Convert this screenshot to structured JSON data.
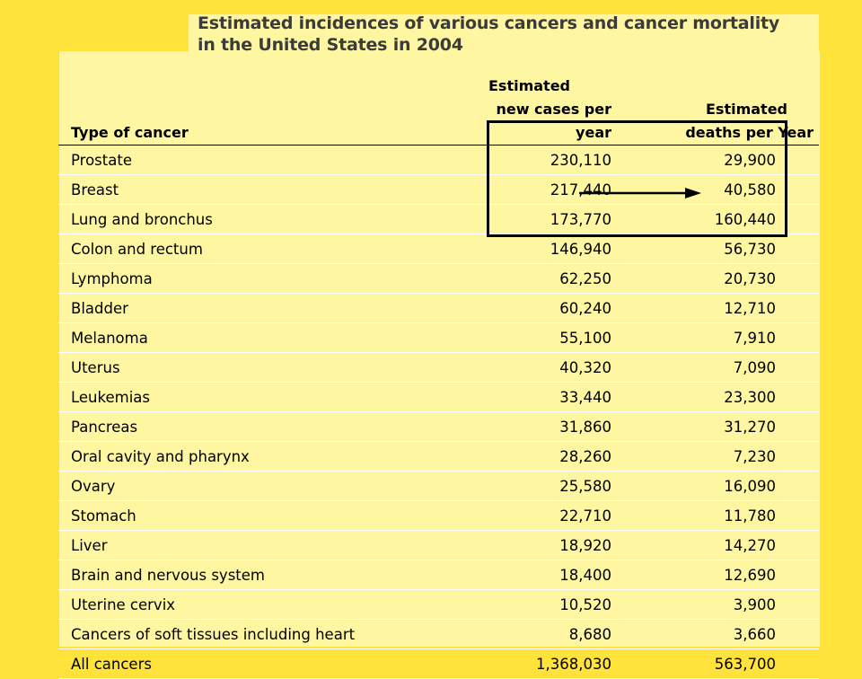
{
  "title": {
    "line1": "Estimated incidences of various cancers and cancer mortality",
    "line2": "in the United States in 2004"
  },
  "table": {
    "headers": {
      "type": "Type of cancer",
      "new_cases_line1": "Estimated",
      "new_cases_line2": "new cases per year",
      "deaths_line1": "Estimated",
      "deaths_line2": "deaths per Year"
    },
    "rows": [
      {
        "type": "Prostate",
        "new_cases": "230,110",
        "deaths": "29,900"
      },
      {
        "type": "Breast",
        "new_cases": "217,440",
        "deaths": "40,580"
      },
      {
        "type": "Lung and bronchus",
        "new_cases": "173,770",
        "deaths": "160,440"
      },
      {
        "type": "Colon and rectum",
        "new_cases": "146,940",
        "deaths": "56,730"
      },
      {
        "type": "Lymphoma",
        "new_cases": "62,250",
        "deaths": "20,730"
      },
      {
        "type": "Bladder",
        "new_cases": "60,240",
        "deaths": "12,710"
      },
      {
        "type": "Melanoma",
        "new_cases": "55,100",
        "deaths": "7,910"
      },
      {
        "type": "Uterus",
        "new_cases": "40,320",
        "deaths": "7,090"
      },
      {
        "type": "Leukemias",
        "new_cases": "33,440",
        "deaths": "23,300"
      },
      {
        "type": "Pancreas",
        "new_cases": "31,860",
        "deaths": "31,270"
      },
      {
        "type": "Oral cavity and pharynx",
        "new_cases": "28,260",
        "deaths": "7,230"
      },
      {
        "type": "Ovary",
        "new_cases": "25,580",
        "deaths": "16,090"
      },
      {
        "type": "Stomach",
        "new_cases": "22,710",
        "deaths": "11,780"
      },
      {
        "type": "Liver",
        "new_cases": "18,920",
        "deaths": "14,270"
      },
      {
        "type": "Brain and nervous system",
        "new_cases": "18,400",
        "deaths": "12,690"
      },
      {
        "type": "Uterine cervix",
        "new_cases": "10,520",
        "deaths": "3,900"
      },
      {
        "type": "Cancers of soft tissues including heart",
        "new_cases": "8,680",
        "deaths": "3,660"
      },
      {
        "type": "All cancers",
        "new_cases": "1,368,030",
        "deaths": "563,700"
      }
    ]
  },
  "colors": {
    "page_background": "#ffe33a",
    "panel_background": "#fef6a0",
    "title_text": "#3b3b3b",
    "annotation": "#000000"
  },
  "annotations": {
    "highlight_box_icon": "rectangle-outline",
    "arrow_icon": "right-arrow"
  }
}
